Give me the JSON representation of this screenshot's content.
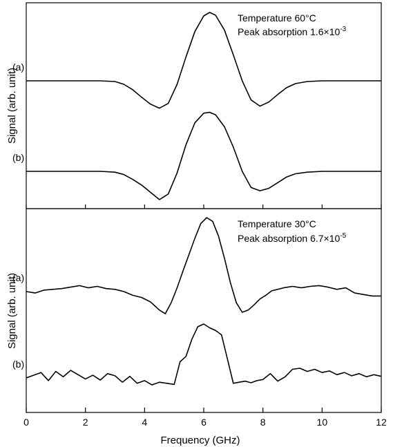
{
  "chart_data": [
    {
      "type": "line",
      "panel": "top",
      "ylabel": "Signal (arb. unit)",
      "xlim": [
        0,
        12
      ],
      "annotations": {
        "line1": "Temperature 60°C",
        "line2_prefix": "Peak absorption 1.6×10",
        "line2_exp": "-3"
      },
      "series": [
        {
          "name": "(a)",
          "x": [
            0,
            0.5,
            1,
            1.5,
            2,
            2.5,
            3,
            3.3,
            3.6,
            3.9,
            4.2,
            4.5,
            4.8,
            5.1,
            5.4,
            5.7,
            6.0,
            6.2,
            6.4,
            6.7,
            7.0,
            7.3,
            7.6,
            7.9,
            8.2,
            8.5,
            8.8,
            9.1,
            9.5,
            10,
            10.5,
            11,
            11.5,
            12
          ],
          "y": [
            0,
            0,
            0,
            0,
            0,
            0,
            -0.01,
            -0.05,
            -0.13,
            -0.24,
            -0.34,
            -0.4,
            -0.33,
            -0.05,
            0.35,
            0.72,
            0.95,
            1.0,
            0.96,
            0.74,
            0.38,
            0.0,
            -0.28,
            -0.37,
            -0.31,
            -0.2,
            -0.1,
            -0.04,
            -0.01,
            0,
            0,
            0,
            0,
            0
          ]
        },
        {
          "name": "(b)",
          "x": [
            0,
            0.5,
            1,
            1.5,
            2,
            2.5,
            3,
            3.3,
            3.6,
            3.9,
            4.2,
            4.5,
            4.8,
            5.1,
            5.4,
            5.7,
            6.0,
            6.2,
            6.4,
            6.7,
            7.0,
            7.3,
            7.6,
            7.9,
            8.2,
            8.5,
            8.8,
            9.1,
            9.5,
            10,
            10.5,
            11,
            11.5,
            12
          ],
          "y": [
            0,
            0,
            0,
            0,
            0,
            0,
            -0.01,
            -0.04,
            -0.1,
            -0.17,
            -0.26,
            -0.35,
            -0.28,
            -0.02,
            0.33,
            0.6,
            0.72,
            0.73,
            0.7,
            0.55,
            0.3,
            0.0,
            -0.2,
            -0.24,
            -0.21,
            -0.14,
            -0.07,
            -0.03,
            -0.01,
            0,
            0,
            0,
            0,
            0
          ]
        }
      ]
    },
    {
      "type": "line",
      "panel": "bottom",
      "xlabel": "Frequency (GHz)",
      "ylabel": "Signal (arb. unit)",
      "xlim": [
        0,
        12
      ],
      "xticks": [
        0,
        2,
        4,
        6,
        8,
        10,
        12
      ],
      "annotations": {
        "line1": "Temperature 30°C",
        "line2_prefix": "Peak absorption 6.7×10",
        "line2_exp": "-5"
      },
      "series": [
        {
          "name": "(a)",
          "x": [
            0,
            0.3,
            0.6,
            0.9,
            1.2,
            1.5,
            1.8,
            2.1,
            2.4,
            2.7,
            3.0,
            3.3,
            3.6,
            3.9,
            4.2,
            4.5,
            4.7,
            4.9,
            5.1,
            5.3,
            5.5,
            5.7,
            5.9,
            6.1,
            6.3,
            6.5,
            6.7,
            6.9,
            7.1,
            7.3,
            7.5,
            7.7,
            7.9,
            8.1,
            8.3,
            8.5,
            8.7,
            9.0,
            9.3,
            9.6,
            9.9,
            10.2,
            10.5,
            10.8,
            11.1,
            11.4,
            11.7,
            12
          ],
          "y": [
            0,
            -0.02,
            0.02,
            0.03,
            0.04,
            0.06,
            0.08,
            0.05,
            0.07,
            0.04,
            0.03,
            0.0,
            -0.05,
            -0.08,
            -0.14,
            -0.25,
            -0.3,
            -0.15,
            0.05,
            0.28,
            0.5,
            0.72,
            0.92,
            1.0,
            0.95,
            0.75,
            0.45,
            0.12,
            -0.15,
            -0.28,
            -0.25,
            -0.18,
            -0.1,
            -0.05,
            0.01,
            0.03,
            0.05,
            0.07,
            0.05,
            0.07,
            0.08,
            0.06,
            0.03,
            0.05,
            -0.02,
            -0.04,
            -0.06,
            -0.06
          ]
        },
        {
          "name": "(b)",
          "x": [
            0,
            0.25,
            0.5,
            0.75,
            1.0,
            1.25,
            1.5,
            1.75,
            2.0,
            2.25,
            2.5,
            2.75,
            3.0,
            3.25,
            3.5,
            3.75,
            4.0,
            4.25,
            4.5,
            4.75,
            5.0,
            5.2,
            5.4,
            5.6,
            5.8,
            6.0,
            6.2,
            6.4,
            6.6,
            6.8,
            7.0,
            7.2,
            7.4,
            7.6,
            7.8,
            8.0,
            8.25,
            8.5,
            8.75,
            9.0,
            9.25,
            9.5,
            9.75,
            10.0,
            10.25,
            10.5,
            10.75,
            11.0,
            11.25,
            11.5,
            11.75,
            12
          ],
          "y": [
            0,
            0.05,
            0.1,
            -0.05,
            0.12,
            0.02,
            0.14,
            0.06,
            -0.02,
            0.05,
            -0.04,
            0.08,
            0.04,
            -0.08,
            0.03,
            -0.1,
            -0.05,
            -0.13,
            -0.08,
            -0.1,
            -0.12,
            0.3,
            0.4,
            0.72,
            0.95,
            1.0,
            0.93,
            0.88,
            0.8,
            0.35,
            -0.1,
            -0.08,
            -0.06,
            -0.09,
            -0.05,
            -0.03,
            0.08,
            -0.06,
            0.02,
            0.16,
            0.18,
            0.12,
            0.16,
            0.1,
            0.13,
            0.06,
            0.1,
            0.04,
            0.08,
            0.02,
            0.06,
            0.03
          ]
        }
      ]
    }
  ]
}
